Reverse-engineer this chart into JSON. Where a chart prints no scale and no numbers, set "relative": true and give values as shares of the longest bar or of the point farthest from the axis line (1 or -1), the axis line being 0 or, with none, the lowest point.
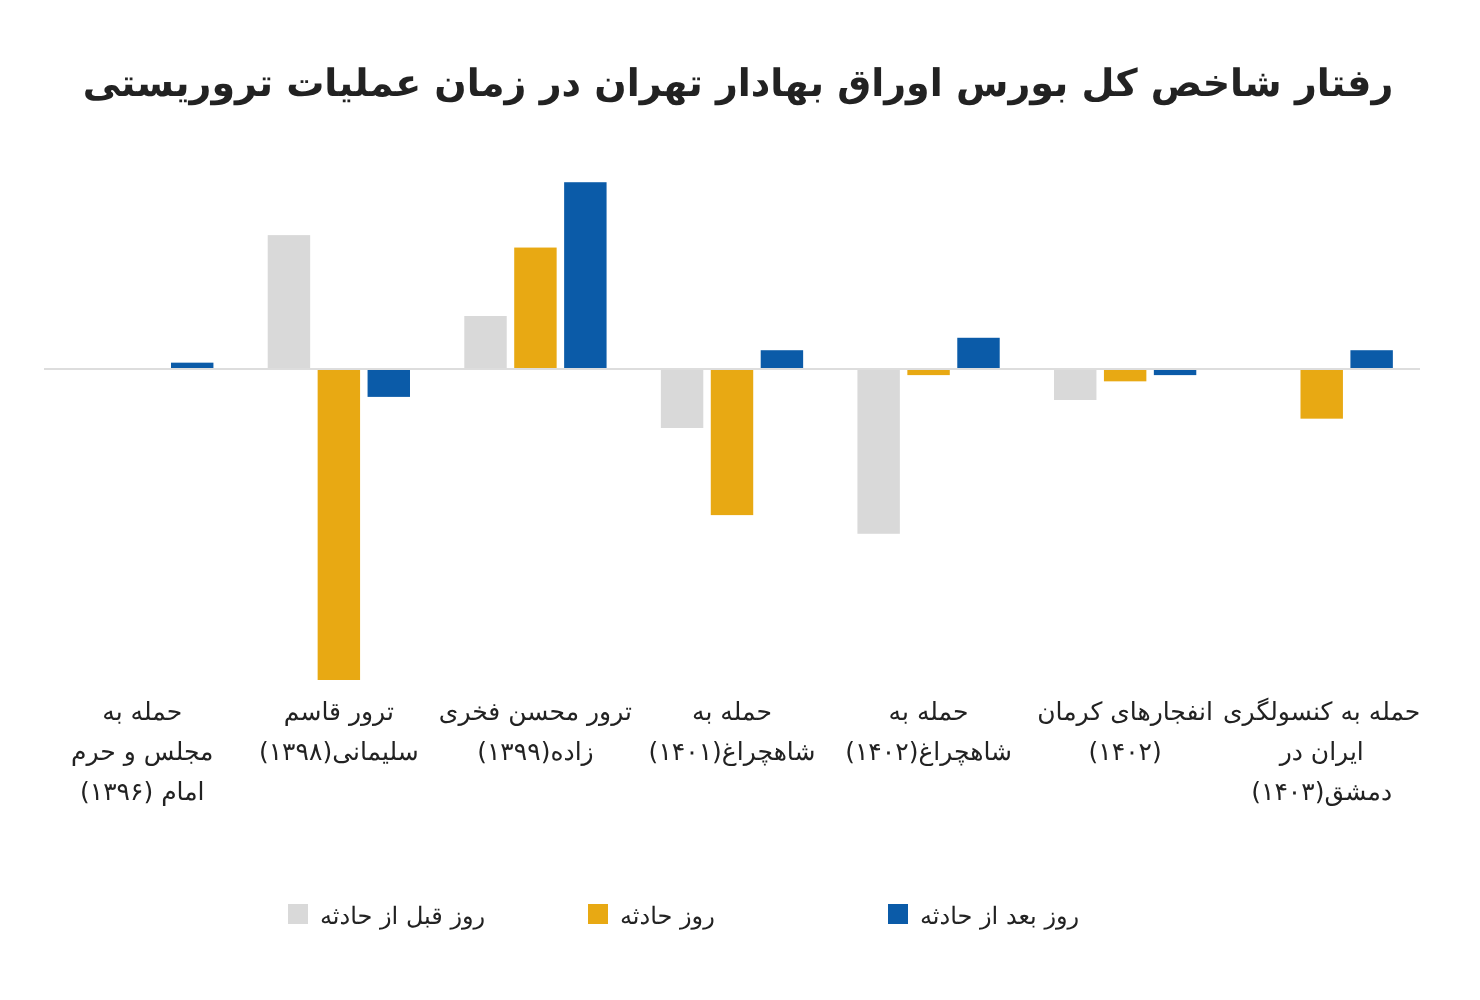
{
  "chart_data": {
    "type": "bar",
    "title": "رفتار شاخص کل بورس اوراق بهادار تهران در زمان عملیات تروریستی",
    "relative": true,
    "legend": "bottom",
    "categories": [
      "حمله به\nمجلس و حرم\nامام (۱۳۹۶)",
      "ترور قاسم\nسلیمانی(۱۳۹۸)",
      "ترور محسن فخری\nزاده(۱۳۹۹)",
      "حمله به\nشاهچراغ(۱۴۰۱)",
      "حمله به\nشاهچراغ(۱۴۰۲)",
      "انفجارهای کرمان\n(۱۴۰۲)",
      "حمله به کنسولگری\nایران در\nدمشق(۱۴۰۳)"
    ],
    "series": [
      {
        "name": "روز قبل از حادثه",
        "color": "#d9d9d9",
        "values": [
          null,
          0.43,
          0.17,
          -0.19,
          -0.53,
          -0.1,
          null
        ]
      },
      {
        "name": "روز حادثه",
        "color": "#e8a913",
        "values": [
          null,
          -1,
          0.39,
          -0.47,
          -0.02,
          -0.04,
          -0.16
        ]
      },
      {
        "name": "روز بعد از حادثه",
        "color": "#0b5ba8",
        "values": [
          0.02,
          -0.09,
          0.6,
          0.06,
          0.1,
          -0.02,
          0.06
        ]
      }
    ]
  }
}
